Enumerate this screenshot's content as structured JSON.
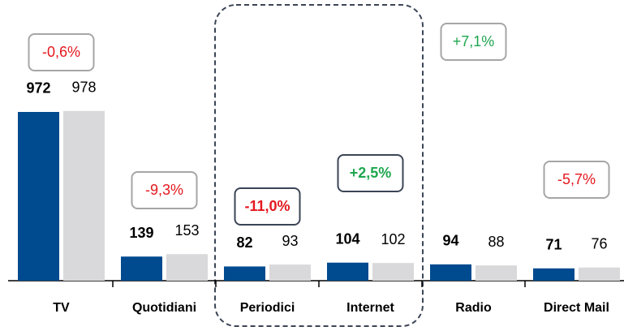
{
  "chart_data": {
    "type": "bar",
    "categories": [
      "TV",
      "Quotidiani",
      "Periodici",
      "Internet",
      "Radio",
      "Direct Mail"
    ],
    "series": [
      {
        "color": "#004a8f",
        "bold": true,
        "values": [
          972,
          139,
          82,
          104,
          94,
          71
        ]
      },
      {
        "color": "#d9d9db",
        "bold": false,
        "values": [
          978,
          153,
          93,
          102,
          88,
          76
        ]
      }
    ],
    "annotations": [
      {
        "text": "-0,6%",
        "color": "#e3181f",
        "border": "#a6a6a6",
        "bold": false
      },
      {
        "text": "-9,3%",
        "color": "#e3181f",
        "border": "#a6a6a6",
        "bold": false
      },
      {
        "text": "-11,0%",
        "color": "#e3181f",
        "border": "#3b4556",
        "bold": true
      },
      {
        "text": "+2,5%",
        "color": "#1fa64f",
        "border": "#3b4556",
        "bold": true
      },
      {
        "text": "+7,1%",
        "color": "#1fa64f",
        "border": "#a6a6a6",
        "bold": false
      },
      {
        "text": "-5,7%",
        "color": "#e3181f",
        "border": "#a6a6a6",
        "bold": false
      }
    ]
  }
}
